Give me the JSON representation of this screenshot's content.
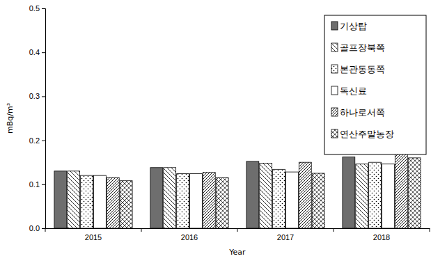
{
  "chart_data": {
    "type": "bar",
    "xlabel": "Year",
    "ylabel": "mBq/m³",
    "categories": [
      "2015",
      "2016",
      "2017",
      "2018"
    ],
    "series": [
      {
        "name": "기상탑",
        "color": "#6e6e6e",
        "values": [
          0.13,
          0.138,
          0.152,
          0.162
        ]
      },
      {
        "name": "골프장북쪽",
        "color": "#ffffff",
        "values": [
          0.13,
          0.138,
          0.148,
          0.146
        ]
      },
      {
        "name": "본관동동쪽",
        "color": "#ffffff",
        "values": [
          0.12,
          0.124,
          0.134,
          0.15
        ]
      },
      {
        "name": "독신료",
        "color": "#ffffff",
        "values": [
          0.12,
          0.124,
          0.128,
          0.146
        ]
      },
      {
        "name": "하나로서쪽",
        "color": "#ffffff",
        "values": [
          0.115,
          0.127,
          0.15,
          0.177
        ]
      },
      {
        "name": "연산주말농장",
        "color": "#ffffff",
        "values": [
          0.108,
          0.115,
          0.125,
          0.16
        ]
      }
    ],
    "ylim": [
      0,
      0.5
    ],
    "yticks": [
      {
        "value": 0,
        "label": "0.0"
      },
      0.1,
      0.2,
      0.3,
      0.4,
      0.5
    ],
    "legend": "upper right",
    "grid": false
  }
}
